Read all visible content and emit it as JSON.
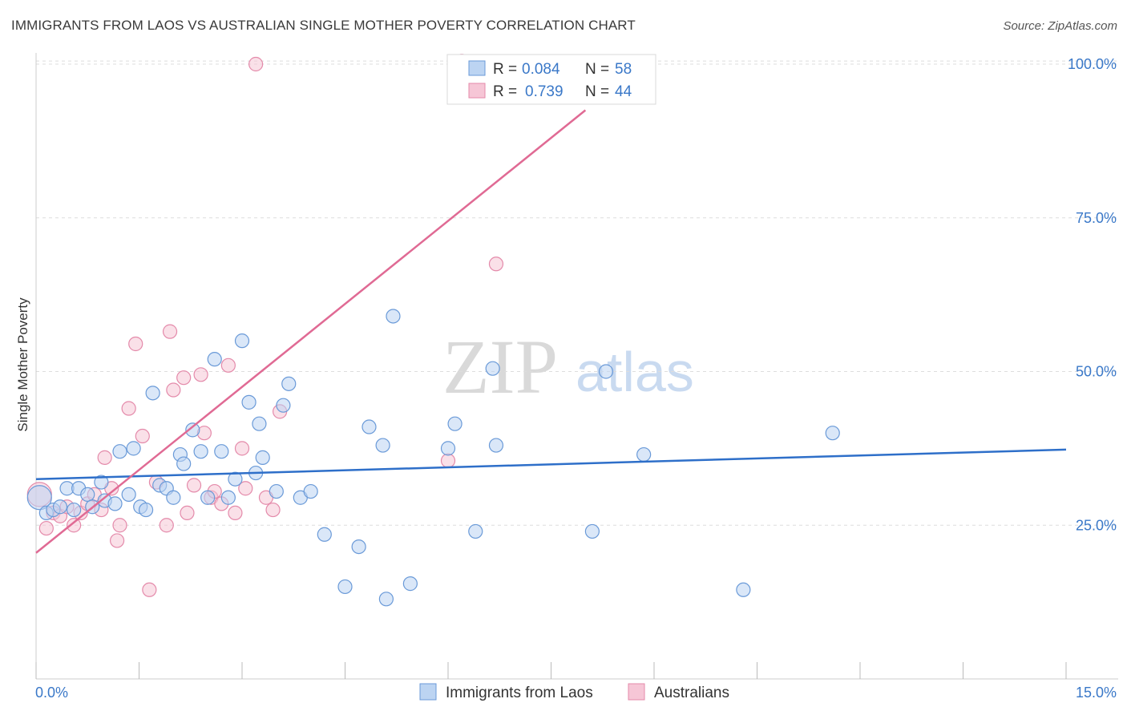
{
  "title": "IMMIGRANTS FROM LAOS VS AUSTRALIAN SINGLE MOTHER POVERTY CORRELATION CHART",
  "source": "Source: ZipAtlas.com",
  "watermark": {
    "zip": "ZIP",
    "atlas": "atlas"
  },
  "colors": {
    "blue": "#3a78c8",
    "blue_fill": "#bcd4f2",
    "pink": "#e07098",
    "pink_fill": "#f6c6d6",
    "grid": "#dddddd"
  },
  "legend": {
    "rows": [
      {
        "r_label": "R =",
        "r_value": "0.084",
        "n_label": "N =",
        "n_value": "58"
      },
      {
        "r_label": "R =",
        "r_value": "0.739",
        "n_label": "N =",
        "n_value": "44"
      }
    ]
  },
  "chart_data": {
    "type": "scatter",
    "title": "IMMIGRANTS FROM LAOS VS AUSTRALIAN SINGLE MOTHER POVERTY CORRELATION CHART",
    "xlabel": "",
    "ylabel": "Single Mother Poverty",
    "xlim": [
      0,
      15
    ],
    "ylim": [
      0,
      105
    ],
    "x_tick_labels": [
      "0.0%",
      "15.0%"
    ],
    "y_ticks": [
      25,
      50,
      75,
      100
    ],
    "y_tick_labels": [
      "25.0%",
      "50.0%",
      "75.0%",
      "100.0%"
    ],
    "grid": true,
    "legend_position": "top-center",
    "series": [
      {
        "name": "Immigrants from Laos",
        "color": "#3a78c8",
        "trendline": {
          "x": [
            0,
            15
          ],
          "y": [
            32.5,
            37.3
          ]
        },
        "points": [
          [
            0.05,
            29.5
          ],
          [
            0.15,
            27
          ],
          [
            0.25,
            27.5
          ],
          [
            0.35,
            28
          ],
          [
            0.45,
            31
          ],
          [
            0.55,
            27.5
          ],
          [
            0.62,
            31
          ],
          [
            0.75,
            30
          ],
          [
            0.82,
            28
          ],
          [
            0.95,
            32
          ],
          [
            1.0,
            29
          ],
          [
            1.15,
            28.5
          ],
          [
            1.22,
            37
          ],
          [
            1.35,
            30
          ],
          [
            1.42,
            37.5
          ],
          [
            1.52,
            28
          ],
          [
            1.6,
            27.5
          ],
          [
            1.7,
            46.5
          ],
          [
            1.8,
            31.5
          ],
          [
            1.9,
            31
          ],
          [
            2.0,
            29.5
          ],
          [
            2.1,
            36.5
          ],
          [
            2.15,
            35
          ],
          [
            2.28,
            40.5
          ],
          [
            2.4,
            37
          ],
          [
            2.5,
            29.5
          ],
          [
            2.6,
            52
          ],
          [
            2.7,
            37
          ],
          [
            2.8,
            29.5
          ],
          [
            2.9,
            32.5
          ],
          [
            3.0,
            55
          ],
          [
            3.1,
            45
          ],
          [
            3.2,
            33.5
          ],
          [
            3.25,
            41.5
          ],
          [
            3.3,
            36
          ],
          [
            3.5,
            30.5
          ],
          [
            3.6,
            44.5
          ],
          [
            3.68,
            48
          ],
          [
            3.85,
            29.5
          ],
          [
            4.0,
            30.5
          ],
          [
            4.2,
            23.5
          ],
          [
            4.5,
            15
          ],
          [
            4.7,
            21.5
          ],
          [
            4.85,
            41
          ],
          [
            5.05,
            38
          ],
          [
            5.1,
            13
          ],
          [
            5.2,
            59
          ],
          [
            5.45,
            15.5
          ],
          [
            6.0,
            37.5
          ],
          [
            6.1,
            41.5
          ],
          [
            6.4,
            24
          ],
          [
            6.65,
            50.5
          ],
          [
            6.7,
            38
          ],
          [
            8.1,
            24
          ],
          [
            8.3,
            50
          ],
          [
            8.85,
            36.5
          ],
          [
            10.3,
            14.5
          ],
          [
            11.6,
            40
          ]
        ]
      },
      {
        "name": "Australians",
        "color": "#e07098",
        "trendline": {
          "x": [
            0,
            8.0
          ],
          "y": [
            20.5,
            92.5
          ]
        },
        "points": [
          [
            0.05,
            30
          ],
          [
            0.15,
            24.5
          ],
          [
            0.25,
            27
          ],
          [
            0.35,
            26.5
          ],
          [
            0.45,
            28
          ],
          [
            0.55,
            25
          ],
          [
            0.65,
            27
          ],
          [
            0.75,
            28.5
          ],
          [
            0.85,
            30
          ],
          [
            0.95,
            27.5
          ],
          [
            1.0,
            36
          ],
          [
            1.1,
            31
          ],
          [
            1.18,
            22.5
          ],
          [
            1.22,
            25
          ],
          [
            1.35,
            44
          ],
          [
            1.45,
            54.5
          ],
          [
            1.55,
            39.5
          ],
          [
            1.65,
            14.5
          ],
          [
            1.75,
            32
          ],
          [
            1.9,
            25
          ],
          [
            1.95,
            56.5
          ],
          [
            2.0,
            47
          ],
          [
            2.15,
            49
          ],
          [
            2.2,
            27
          ],
          [
            2.3,
            31.5
          ],
          [
            2.4,
            49.5
          ],
          [
            2.45,
            40
          ],
          [
            2.55,
            29.5
          ],
          [
            2.6,
            30.5
          ],
          [
            2.7,
            28.5
          ],
          [
            2.8,
            51
          ],
          [
            2.9,
            27
          ],
          [
            3.0,
            37.5
          ],
          [
            3.05,
            31
          ],
          [
            3.2,
            100
          ],
          [
            3.35,
            29.5
          ],
          [
            3.45,
            27.5
          ],
          [
            3.55,
            43.5
          ],
          [
            6.0,
            35.5
          ],
          [
            6.2,
            100.5
          ],
          [
            6.35,
            100
          ],
          [
            6.45,
            100
          ],
          [
            6.55,
            100
          ],
          [
            6.7,
            67.5
          ]
        ]
      }
    ]
  }
}
